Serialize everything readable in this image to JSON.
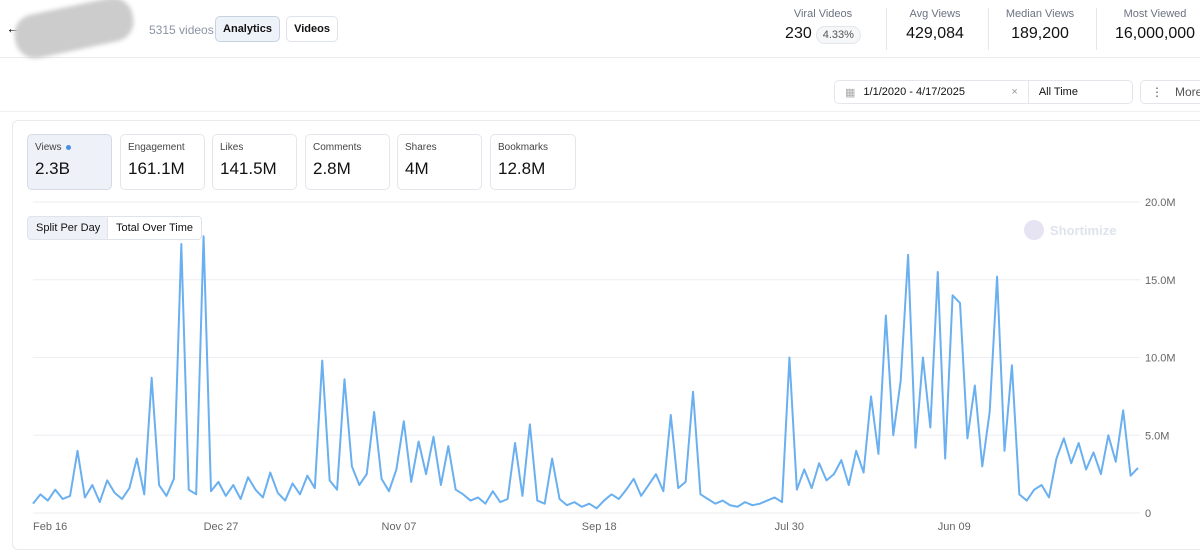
{
  "header": {
    "back": "←",
    "video_count": "5315 videos",
    "tabs": [
      "Analytics",
      "Videos"
    ],
    "stats": [
      {
        "label": "Viral Videos",
        "value": "230",
        "badge": "4.33%"
      },
      {
        "label": "Avg Views",
        "value": "429,084"
      },
      {
        "label": "Median Views",
        "value": "189,200"
      },
      {
        "label": "Most Viewed",
        "value": "16,000,000"
      }
    ]
  },
  "filters": {
    "date_range": "1/1/2020 - 4/17/2025",
    "clear": "×",
    "period": "All Time",
    "more": "More",
    "more_icon": "⋮",
    "calendar_icon": "▦"
  },
  "metrics": [
    {
      "label": "Views",
      "value": "2.3B"
    },
    {
      "label": "Engagement",
      "value": "161.1M"
    },
    {
      "label": "Likes",
      "value": "141.5M"
    },
    {
      "label": "Comments",
      "value": "2.8M"
    },
    {
      "label": "Shares",
      "value": "4M"
    },
    {
      "label": "Bookmarks",
      "value": "12.8M"
    }
  ],
  "modes": [
    "Split Per Day",
    "Total Over Time"
  ],
  "watermark": "Shortimize",
  "chart_data": {
    "type": "line",
    "series_color": "#6ab0f0",
    "y_unit": "M",
    "ylim": [
      0,
      20
    ],
    "yticks": [
      {
        "v": 0,
        "label": "0"
      },
      {
        "v": 5,
        "label": "5.0M"
      },
      {
        "v": 10,
        "label": "10.0M"
      },
      {
        "v": 15,
        "label": "15.0M"
      },
      {
        "v": 20,
        "label": "20.0M"
      }
    ],
    "xticks": [
      {
        "i": 0,
        "label": "Feb 16"
      },
      {
        "i": 23,
        "label": "Dec 27"
      },
      {
        "i": 47,
        "label": "Nov 07"
      },
      {
        "i": 74,
        "label": "Sep 18"
      },
      {
        "i": 100,
        "label": "Jul 30"
      },
      {
        "i": 122,
        "label": "Jun 09"
      }
    ],
    "values": [
      0.6,
      1.2,
      0.8,
      1.5,
      0.9,
      1.1,
      4.0,
      1.0,
      1.8,
      0.7,
      2.1,
      1.3,
      0.9,
      1.6,
      3.5,
      1.2,
      8.7,
      1.8,
      1.1,
      2.2,
      17.3,
      1.5,
      1.2,
      17.8,
      1.4,
      2.0,
      1.1,
      1.8,
      0.9,
      2.3,
      1.5,
      1.0,
      2.6,
      1.3,
      0.8,
      1.9,
      1.2,
      2.4,
      1.6,
      9.8,
      2.1,
      1.5,
      8.6,
      3.0,
      1.8,
      2.5,
      6.5,
      2.2,
      1.4,
      2.8,
      5.9,
      2.0,
      4.6,
      2.5,
      4.9,
      1.8,
      4.3,
      1.5,
      1.2,
      0.8,
      1.0,
      0.6,
      1.4,
      0.7,
      0.9,
      4.5,
      1.1,
      5.7,
      0.8,
      0.6,
      3.5,
      0.9,
      0.5,
      0.7,
      0.4,
      0.6,
      0.3,
      0.8,
      1.2,
      0.9,
      1.5,
      2.2,
      1.1,
      1.8,
      2.5,
      1.4,
      6.3,
      1.6,
      2.0,
      7.8,
      1.2,
      0.9,
      0.6,
      0.8,
      0.5,
      0.4,
      0.7,
      0.5,
      0.6,
      0.8,
      1.0,
      0.7,
      10.0,
      1.5,
      2.8,
      1.6,
      3.2,
      2.1,
      2.5,
      3.4,
      1.8,
      4.0,
      2.6,
      7.5,
      3.8,
      12.7,
      5.0,
      8.5,
      16.6,
      4.2,
      10.0,
      5.5,
      15.5,
      3.5,
      14.0,
      13.5,
      4.8,
      8.2,
      3.0,
      6.5,
      15.2,
      4.0,
      9.5,
      1.2,
      0.8,
      1.5,
      1.8,
      1.0,
      3.5,
      4.8,
      3.2,
      4.5,
      2.8,
      3.9,
      2.5,
      5.0,
      3.3,
      6.6,
      2.4,
      2.9
    ]
  }
}
